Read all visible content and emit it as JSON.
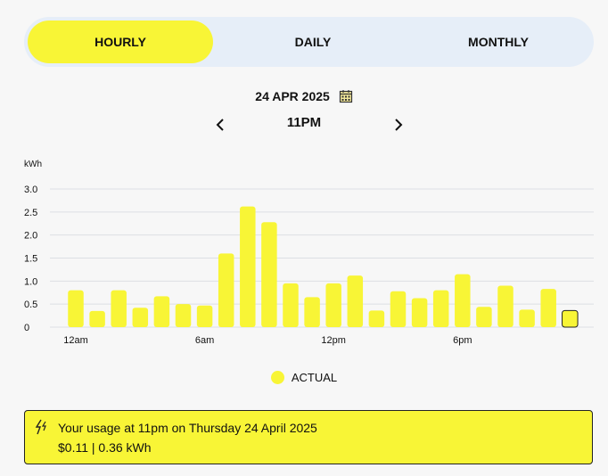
{
  "tabs": [
    {
      "label": "HOURLY",
      "active": true
    },
    {
      "label": "DAILY",
      "active": false
    },
    {
      "label": "MONTHLY",
      "active": false
    }
  ],
  "date": "24 APR 2025",
  "hour": "11PM",
  "icons": {
    "calendar": "calendar-icon",
    "prev": "chevron-left-icon",
    "next": "chevron-right-icon",
    "bolt": "lightning-icon"
  },
  "colors": {
    "accent": "#f8f536",
    "tab_bg": "#e6eef8"
  },
  "chart_data": {
    "type": "bar",
    "ylabel": "kWh",
    "ylim": [
      0,
      3.0
    ],
    "yticks": [
      "3.0",
      "2.5",
      "2.0",
      "1.5",
      "1.0",
      "0.5",
      "0"
    ],
    "ytick_values": [
      3.0,
      2.5,
      2.0,
      1.5,
      1.0,
      0.5,
      0
    ],
    "xtick_labels": [
      {
        "hour": 0,
        "label": "12am"
      },
      {
        "hour": 6,
        "label": "6am"
      },
      {
        "hour": 12,
        "label": "12pm"
      },
      {
        "hour": 18,
        "label": "6pm"
      }
    ],
    "values": [
      0.8,
      0.35,
      0.8,
      0.42,
      0.67,
      0.5,
      0.47,
      1.6,
      2.62,
      2.28,
      0.95,
      0.65,
      0.95,
      1.12,
      0.36,
      0.78,
      0.63,
      0.8,
      1.15,
      0.44,
      0.9,
      0.38,
      0.83,
      0.36
    ],
    "selected_index": 23,
    "grid": true
  },
  "legend": {
    "label": "ACTUAL"
  },
  "summary": {
    "line1": "Your usage at 11pm on Thursday 24 April 2025",
    "line2": "$0.11 | 0.36 kWh"
  }
}
